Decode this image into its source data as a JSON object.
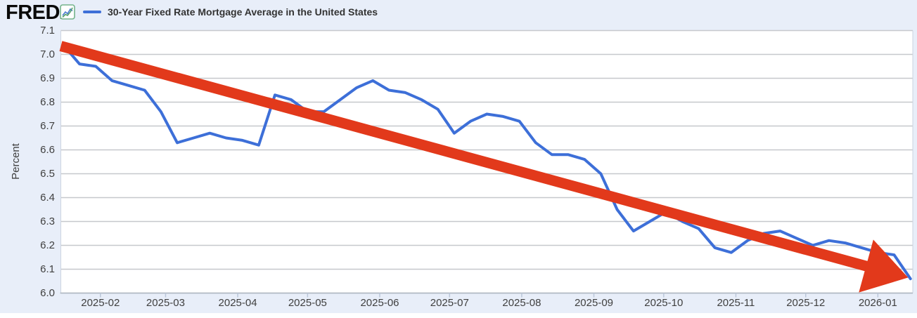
{
  "header": {
    "logo_text": "FRED",
    "logo_mark": ".",
    "legend": {
      "series_label": "30-Year Fixed Rate Mortgage Average in the United States"
    }
  },
  "colors": {
    "background": "#e8eef9",
    "plot_background": "#ffffff",
    "gridline": "#c6c8cc",
    "axis_line_bottom": "#aeb6c2",
    "axis_line_side": "#ccd4e0",
    "tick_mark": "#bac6d8",
    "axis_text": "#404040",
    "series_line": "#3d6fd8",
    "arrow": "#e2391b"
  },
  "chart_data": {
    "type": "line",
    "title": "30-Year Fixed Rate Mortgage Average in the United States",
    "ylabel": "Percent",
    "xlabel": "",
    "grid": true,
    "legend_position": "top-left",
    "ylim": [
      6.0,
      7.1
    ],
    "y_tick_labels": [
      "6.0",
      "6.1",
      "6.2",
      "6.3",
      "6.4",
      "6.5",
      "6.6",
      "6.7",
      "6.8",
      "6.9",
      "7.0",
      "7.1"
    ],
    "x_range": [
      "2025-01-15",
      "2026-01-16"
    ],
    "x_ticks": [
      {
        "label": "2025-02",
        "date": "2025-02-01"
      },
      {
        "label": "2025-03",
        "date": "2025-03-01"
      },
      {
        "label": "2025-04",
        "date": "2025-04-01"
      },
      {
        "label": "2025-05",
        "date": "2025-05-01"
      },
      {
        "label": "2025-06",
        "date": "2025-06-01"
      },
      {
        "label": "2025-07",
        "date": "2025-07-01"
      },
      {
        "label": "2025-08",
        "date": "2025-08-01"
      },
      {
        "label": "2025-09",
        "date": "2025-09-01"
      },
      {
        "label": "2025-10",
        "date": "2025-10-01"
      },
      {
        "label": "2025-11",
        "date": "2025-11-01"
      },
      {
        "label": "2025-12",
        "date": "2025-12-01"
      },
      {
        "label": "2026-01",
        "date": "2026-01-01"
      }
    ],
    "series": [
      {
        "name": "30-Year Fixed Rate Mortgage Average in the United States",
        "color": "#3d6fd8",
        "x": [
          "2025-01-16",
          "2025-01-23",
          "2025-01-30",
          "2025-02-06",
          "2025-02-13",
          "2025-02-20",
          "2025-02-27",
          "2025-03-06",
          "2025-03-13",
          "2025-03-20",
          "2025-03-27",
          "2025-04-03",
          "2025-04-10",
          "2025-04-17",
          "2025-04-24",
          "2025-05-01",
          "2025-05-08",
          "2025-05-15",
          "2025-05-22",
          "2025-05-29",
          "2025-06-05",
          "2025-06-12",
          "2025-06-19",
          "2025-06-26",
          "2025-07-03",
          "2025-07-10",
          "2025-07-17",
          "2025-07-24",
          "2025-07-31",
          "2025-08-07",
          "2025-08-14",
          "2025-08-21",
          "2025-08-28",
          "2025-09-04",
          "2025-09-11",
          "2025-09-18",
          "2025-09-25",
          "2025-10-02",
          "2025-10-09",
          "2025-10-16",
          "2025-10-23",
          "2025-10-30",
          "2025-11-06",
          "2025-11-13",
          "2025-11-20",
          "2025-11-27",
          "2025-12-04",
          "2025-12-11",
          "2025-12-18",
          "2025-12-25",
          "2026-01-01",
          "2026-01-08",
          "2026-01-15"
        ],
        "values": [
          7.04,
          6.96,
          6.95,
          6.89,
          6.87,
          6.85,
          6.76,
          6.63,
          6.65,
          6.67,
          6.65,
          6.64,
          6.62,
          6.83,
          6.81,
          6.76,
          6.76,
          6.81,
          6.86,
          6.89,
          6.85,
          6.84,
          6.81,
          6.77,
          6.67,
          6.72,
          6.75,
          6.74,
          6.72,
          6.63,
          6.58,
          6.58,
          6.56,
          6.5,
          6.35,
          6.26,
          6.3,
          6.34,
          6.3,
          6.27,
          6.19,
          6.17,
          6.22,
          6.25,
          6.26,
          6.23,
          6.2,
          6.22,
          6.21,
          6.19,
          6.17,
          6.16,
          6.06
        ]
      }
    ],
    "annotation": {
      "shape": "arrow",
      "description": "thick red downward trend arrow drawn over the chart",
      "color": "#e2391b",
      "from": {
        "date": "2025-01-15",
        "value": 7.035
      },
      "to": {
        "date": "2026-01-14",
        "value": 6.065
      }
    }
  }
}
